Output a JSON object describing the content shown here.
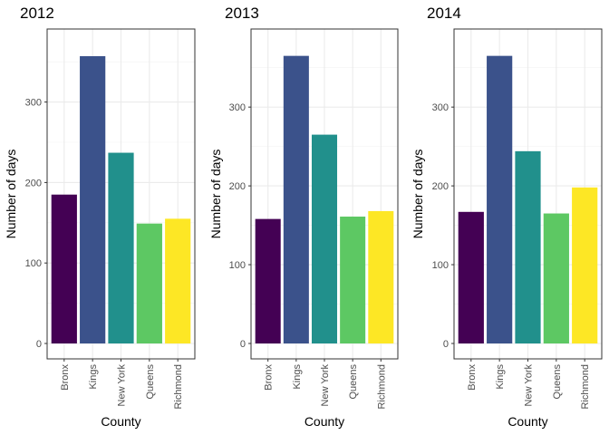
{
  "chart_data": [
    {
      "type": "bar",
      "title": "2012",
      "xlabel": "County",
      "ylabel": "Number of days",
      "categories": [
        "Bronx",
        "Kings",
        "New York",
        "Queens",
        "Richmond"
      ],
      "values": [
        185,
        357,
        237,
        149,
        155
      ],
      "ylim": [
        0,
        375
      ],
      "yticks": [
        0,
        100,
        200,
        300
      ],
      "grid": true
    },
    {
      "type": "bar",
      "title": "2013",
      "xlabel": "County",
      "ylabel": "Number of days",
      "categories": [
        "Bronx",
        "Kings",
        "New York",
        "Queens",
        "Richmond"
      ],
      "values": [
        158,
        365,
        265,
        161,
        168
      ],
      "ylim": [
        0,
        383
      ],
      "yticks": [
        0,
        100,
        200,
        300
      ],
      "grid": true
    },
    {
      "type": "bar",
      "title": "2014",
      "xlabel": "County",
      "ylabel": "Number of days",
      "categories": [
        "Bronx",
        "Kings",
        "New York",
        "Queens",
        "Richmond"
      ],
      "values": [
        167,
        365,
        244,
        165,
        198
      ],
      "ylim": [
        0,
        383
      ],
      "yticks": [
        0,
        100,
        200,
        300
      ],
      "grid": true
    }
  ],
  "colors": [
    "#440154",
    "#3B528B",
    "#21908C",
    "#5DC863",
    "#FDE725"
  ]
}
